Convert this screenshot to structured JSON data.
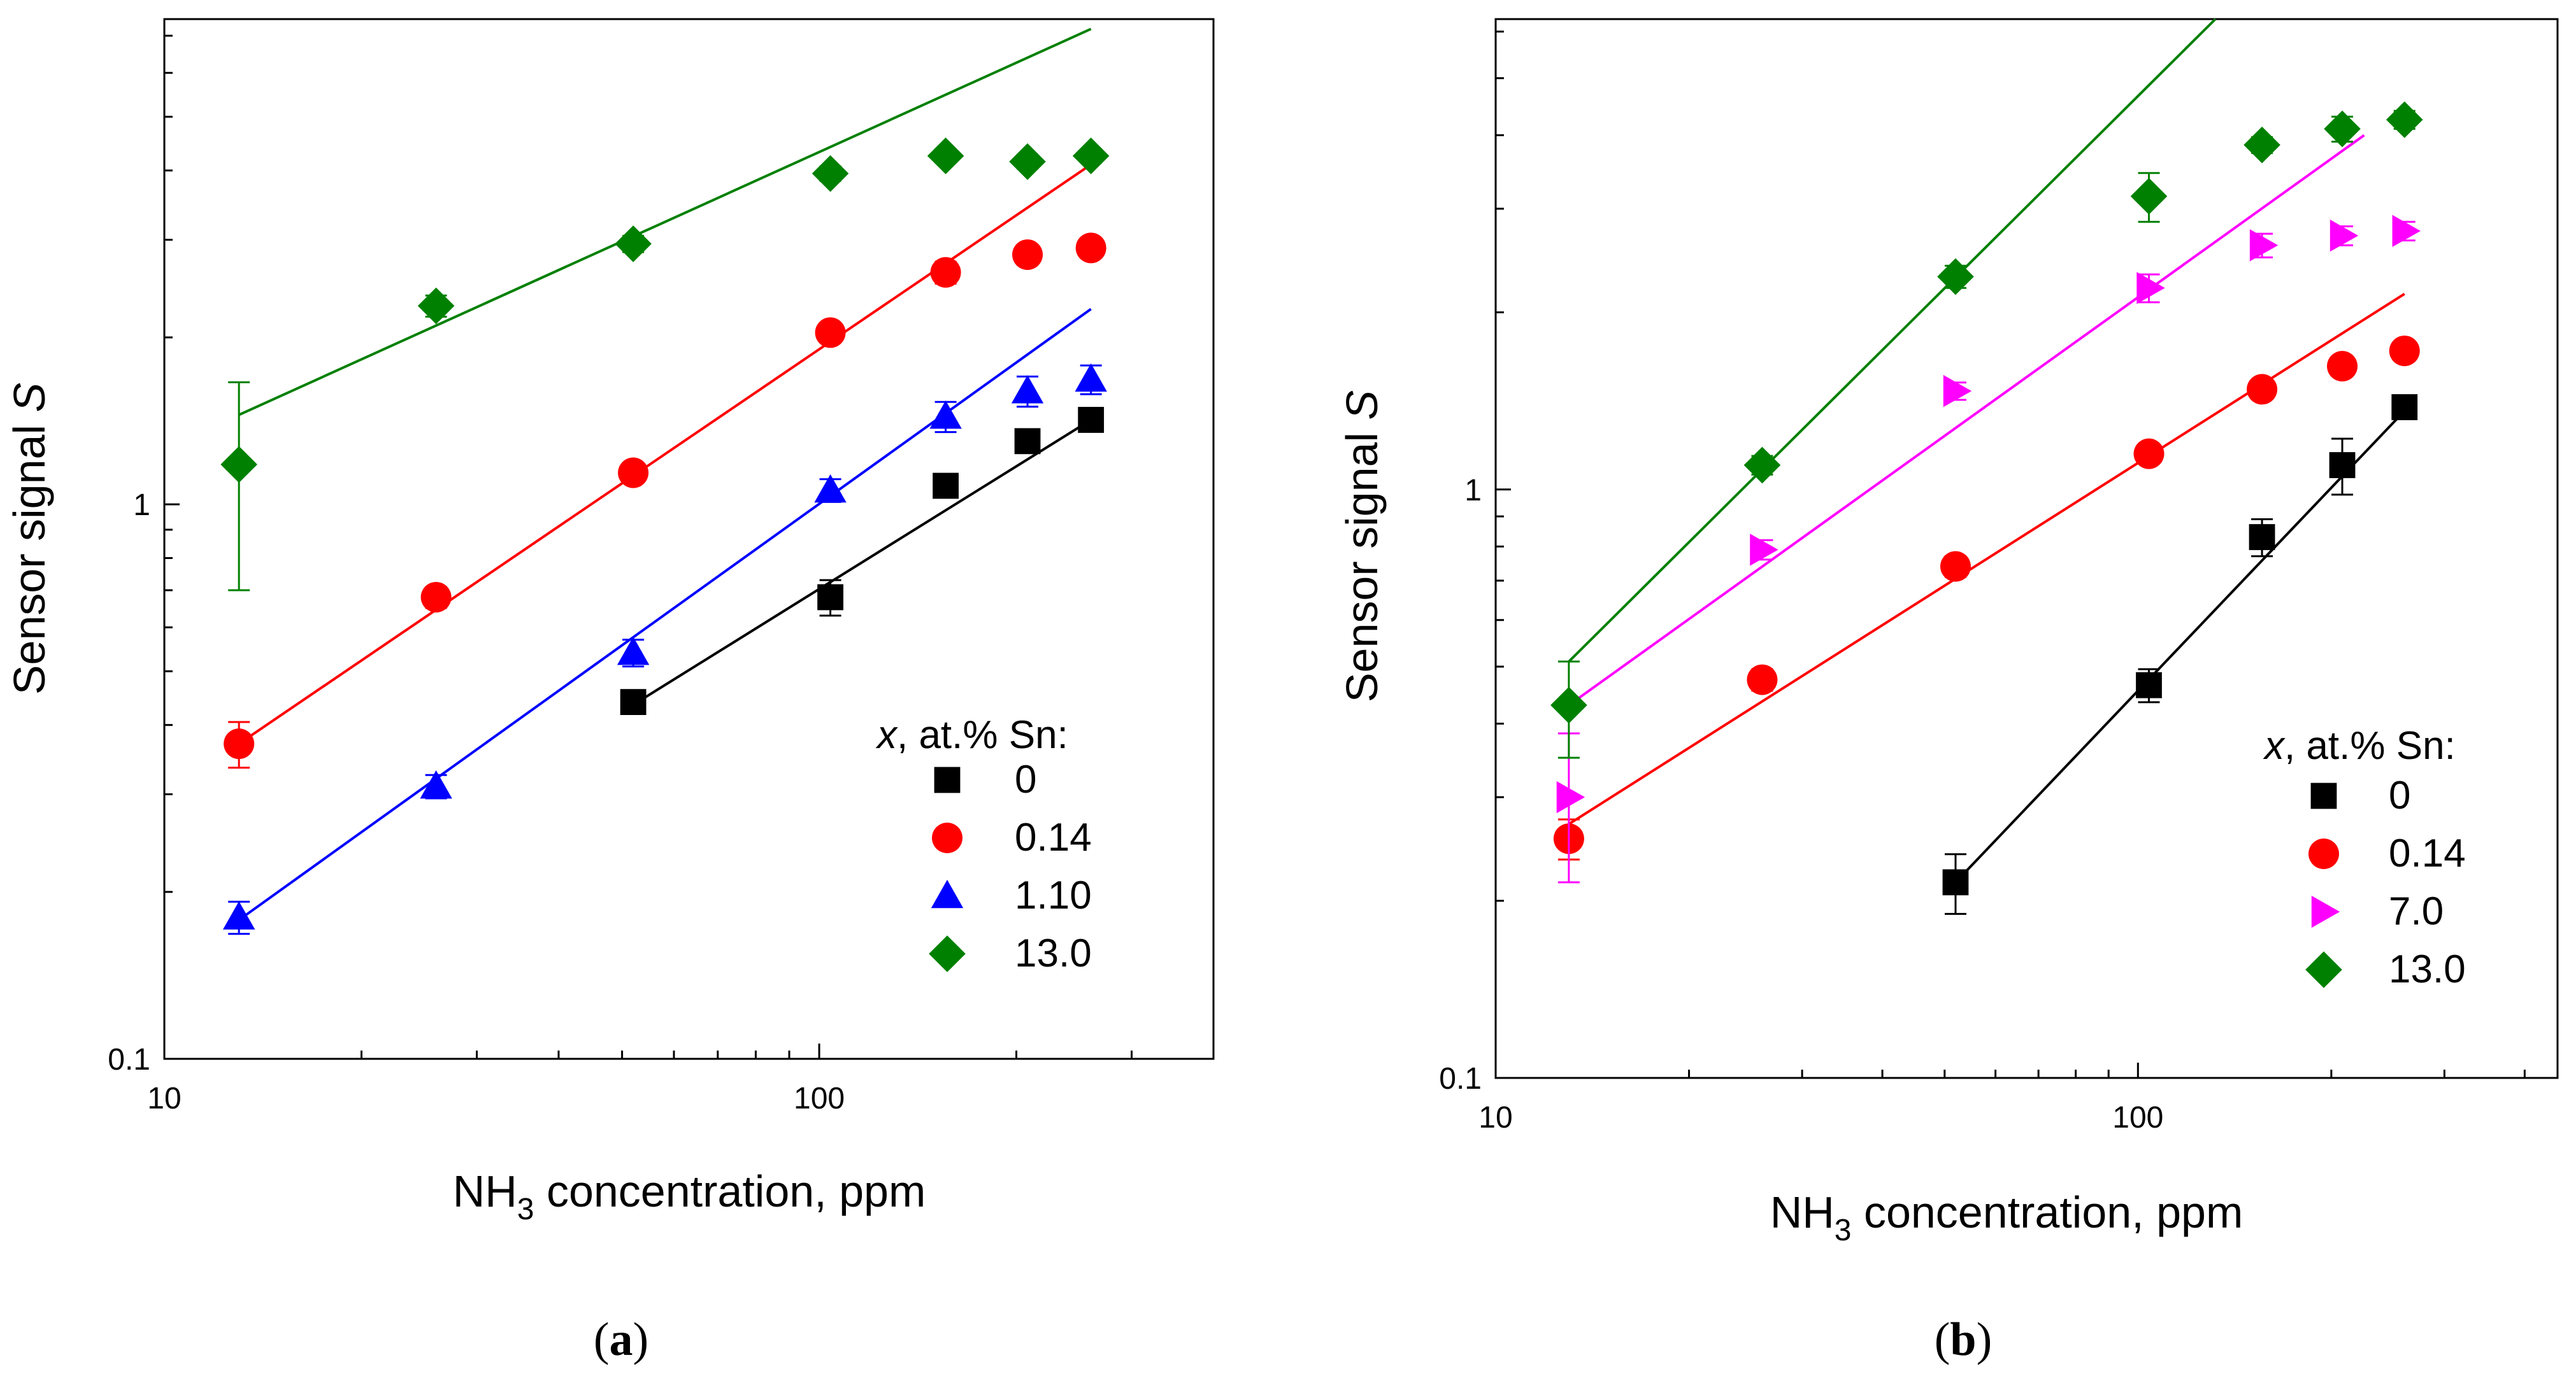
{
  "chart_data": [
    {
      "type": "scatter",
      "panel_label": "a",
      "x_scale": "log",
      "y_scale": "log",
      "xlim": [
        10,
        400
      ],
      "ylim": [
        0.1,
        7.5
      ],
      "xlabel": {
        "main": "NH",
        "sub": "3",
        "rest": " concentration, ppm"
      },
      "ylabel": {
        "main": "Sensor signal ",
        "italic": "S"
      },
      "x_ticks": [
        {
          "value": 10,
          "label": "10"
        },
        {
          "value": 100,
          "label": "100"
        }
      ],
      "y_ticks": [
        {
          "value": 0.1,
          "label": "0.1"
        },
        {
          "value": 1,
          "label": "1"
        }
      ],
      "legend": {
        "title_italic": "x",
        "title_rest": ", at.% Sn:",
        "position": "lower-right"
      },
      "series": [
        {
          "name": "0",
          "marker": "square",
          "color": "#000000",
          "x": [
            52,
            104,
            156,
            208,
            260
          ],
          "y": [
            0.44,
            0.68,
            1.08,
            1.3,
            1.42
          ],
          "err": [
            0.02,
            0.05,
            0.04,
            0.05,
            0.06
          ],
          "fit": {
            "x": [
              52,
              260
            ],
            "y": [
              0.435,
              1.42
            ]
          }
        },
        {
          "name": "0.14",
          "marker": "circle",
          "color": "#ff0000",
          "x": [
            13,
            26,
            52,
            104,
            156,
            208,
            260
          ],
          "y": [
            0.37,
            0.68,
            1.14,
            2.04,
            2.62,
            2.82,
            2.9
          ],
          "err": [
            0.035,
            0.03,
            0.04,
            0.06,
            0.12,
            0.1,
            0.1
          ],
          "fit": {
            "x": [
              13,
              260
            ],
            "y": [
              0.37,
              4.1
            ]
          }
        },
        {
          "name": "1.10",
          "marker": "triangle-up",
          "color": "#0000ff",
          "x": [
            13,
            26,
            52,
            104,
            156,
            208,
            260
          ],
          "y": [
            0.18,
            0.31,
            0.54,
            1.06,
            1.44,
            1.6,
            1.68
          ],
          "err": [
            0.012,
            0.015,
            0.03,
            0.05,
            0.09,
            0.1,
            0.1
          ],
          "fit": {
            "x": [
              13,
              260
            ],
            "y": [
              0.178,
              2.25
            ]
          }
        },
        {
          "name": "13.0",
          "marker": "diamond",
          "color": "#008000",
          "x": [
            13,
            26,
            52,
            104,
            156,
            208,
            260
          ],
          "y": [
            1.18,
            2.28,
            2.95,
            3.95,
            4.25,
            4.15,
            4.25
          ],
          "err": [
            0.48,
            0.1,
            0.1,
            0.12,
            0.12,
            0.12,
            0.12
          ],
          "fit": {
            "x": [
              13,
              260
            ],
            "y": [
              1.45,
              7.2
            ]
          }
        }
      ]
    },
    {
      "type": "scatter",
      "panel_label": "b",
      "x_scale": "log",
      "y_scale": "log",
      "xlim": [
        10,
        450
      ],
      "ylim": [
        0.1,
        6.3
      ],
      "xlabel": {
        "main": "NH",
        "sub": "3",
        "rest": " concentration, ppm"
      },
      "ylabel": {
        "main": "Sensor signal ",
        "italic": "S"
      },
      "x_ticks": [
        {
          "value": 10,
          "label": "10"
        },
        {
          "value": 100,
          "label": "100"
        }
      ],
      "y_ticks": [
        {
          "value": 0.1,
          "label": "0.1"
        },
        {
          "value": 1,
          "label": "1"
        }
      ],
      "legend": {
        "title_italic": "x",
        "title_rest": ", at.% Sn:",
        "position": "lower-right"
      },
      "series": [
        {
          "name": "0",
          "marker": "square",
          "color": "#000000",
          "x": [
            52,
            104,
            156,
            208,
            260
          ],
          "y": [
            0.215,
            0.465,
            0.83,
            1.1,
            1.38
          ],
          "err": [
            0.025,
            0.03,
            0.06,
            0.12,
            0.05
          ],
          "fit": {
            "x": [
              52,
              260
            ],
            "y": [
              0.215,
              1.36
            ]
          }
        },
        {
          "name": "0.14",
          "marker": "circle",
          "color": "#ff0000",
          "x": [
            13,
            26,
            52,
            104,
            156,
            208,
            260
          ],
          "y": [
            0.255,
            0.475,
            0.74,
            1.15,
            1.48,
            1.62,
            1.72
          ],
          "err": [
            0.02,
            0.02,
            0.03,
            0.04,
            0.05,
            0.05,
            0.05
          ],
          "fit": {
            "x": [
              13,
              260
            ],
            "y": [
              0.27,
              2.15
            ]
          }
        },
        {
          "name": "7.0",
          "marker": "triangle-right",
          "color": "#ff00ff",
          "x": [
            13,
            26,
            52,
            104,
            156,
            208,
            260
          ],
          "y": [
            0.3,
            0.79,
            1.47,
            2.2,
            2.6,
            2.7,
            2.75
          ],
          "err": [
            0.085,
            0.03,
            0.05,
            0.12,
            0.12,
            0.1,
            0.1
          ],
          "fit": {
            "x": [
              13,
              225
            ],
            "y": [
              0.43,
              4.0
            ]
          }
        },
        {
          "name": "13.0",
          "marker": "diamond",
          "color": "#008000",
          "x": [
            13,
            26,
            52,
            104,
            156,
            208,
            260
          ],
          "y": [
            0.43,
            1.1,
            2.3,
            3.15,
            3.85,
            4.1,
            4.25
          ],
          "err": [
            0.08,
            0.04,
            0.1,
            0.3,
            0.12,
            0.2,
            0.15
          ],
          "fit": {
            "x": [
              13,
              132
            ],
            "y": [
              0.51,
              6.3
            ]
          }
        }
      ]
    }
  ]
}
